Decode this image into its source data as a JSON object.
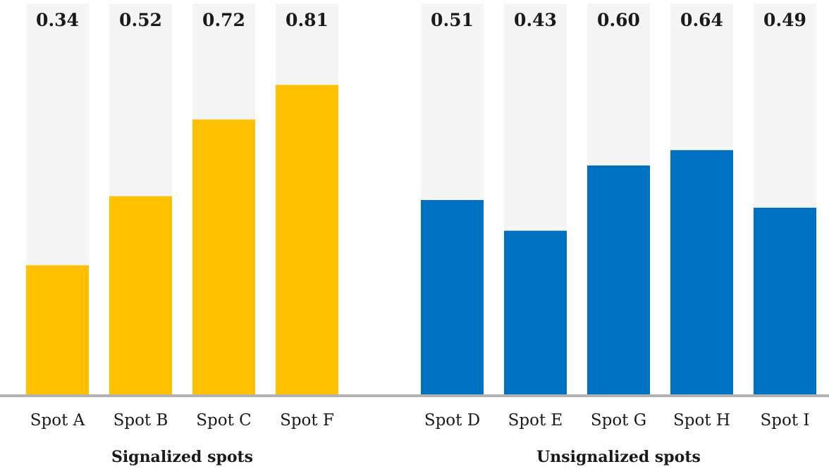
{
  "chart_data": {
    "type": "bar",
    "ylim": [
      0,
      1
    ],
    "grid": false,
    "background_track_color": "#f5f5f5",
    "baseline_color": "#b3b3b3",
    "groups": [
      {
        "label": "Signalized spots",
        "color": "#ffc000",
        "categories": [
          "Spot A",
          "Spot B",
          "Spot C",
          "Spot F"
        ],
        "values": [
          0.34,
          0.52,
          0.72,
          0.81
        ],
        "value_labels": [
          "0.34",
          "0.52",
          "0.72",
          "0.81"
        ]
      },
      {
        "label": "Unsignalized spots",
        "color": "#0070c0",
        "categories": [
          "Spot D",
          "Spot E",
          "Spot G",
          "Spot H",
          "Spot I"
        ],
        "values": [
          0.51,
          0.43,
          0.6,
          0.64,
          0.49
        ],
        "value_labels": [
          "0.51",
          "0.43",
          "0.60",
          "0.64",
          "0.49"
        ]
      }
    ]
  }
}
